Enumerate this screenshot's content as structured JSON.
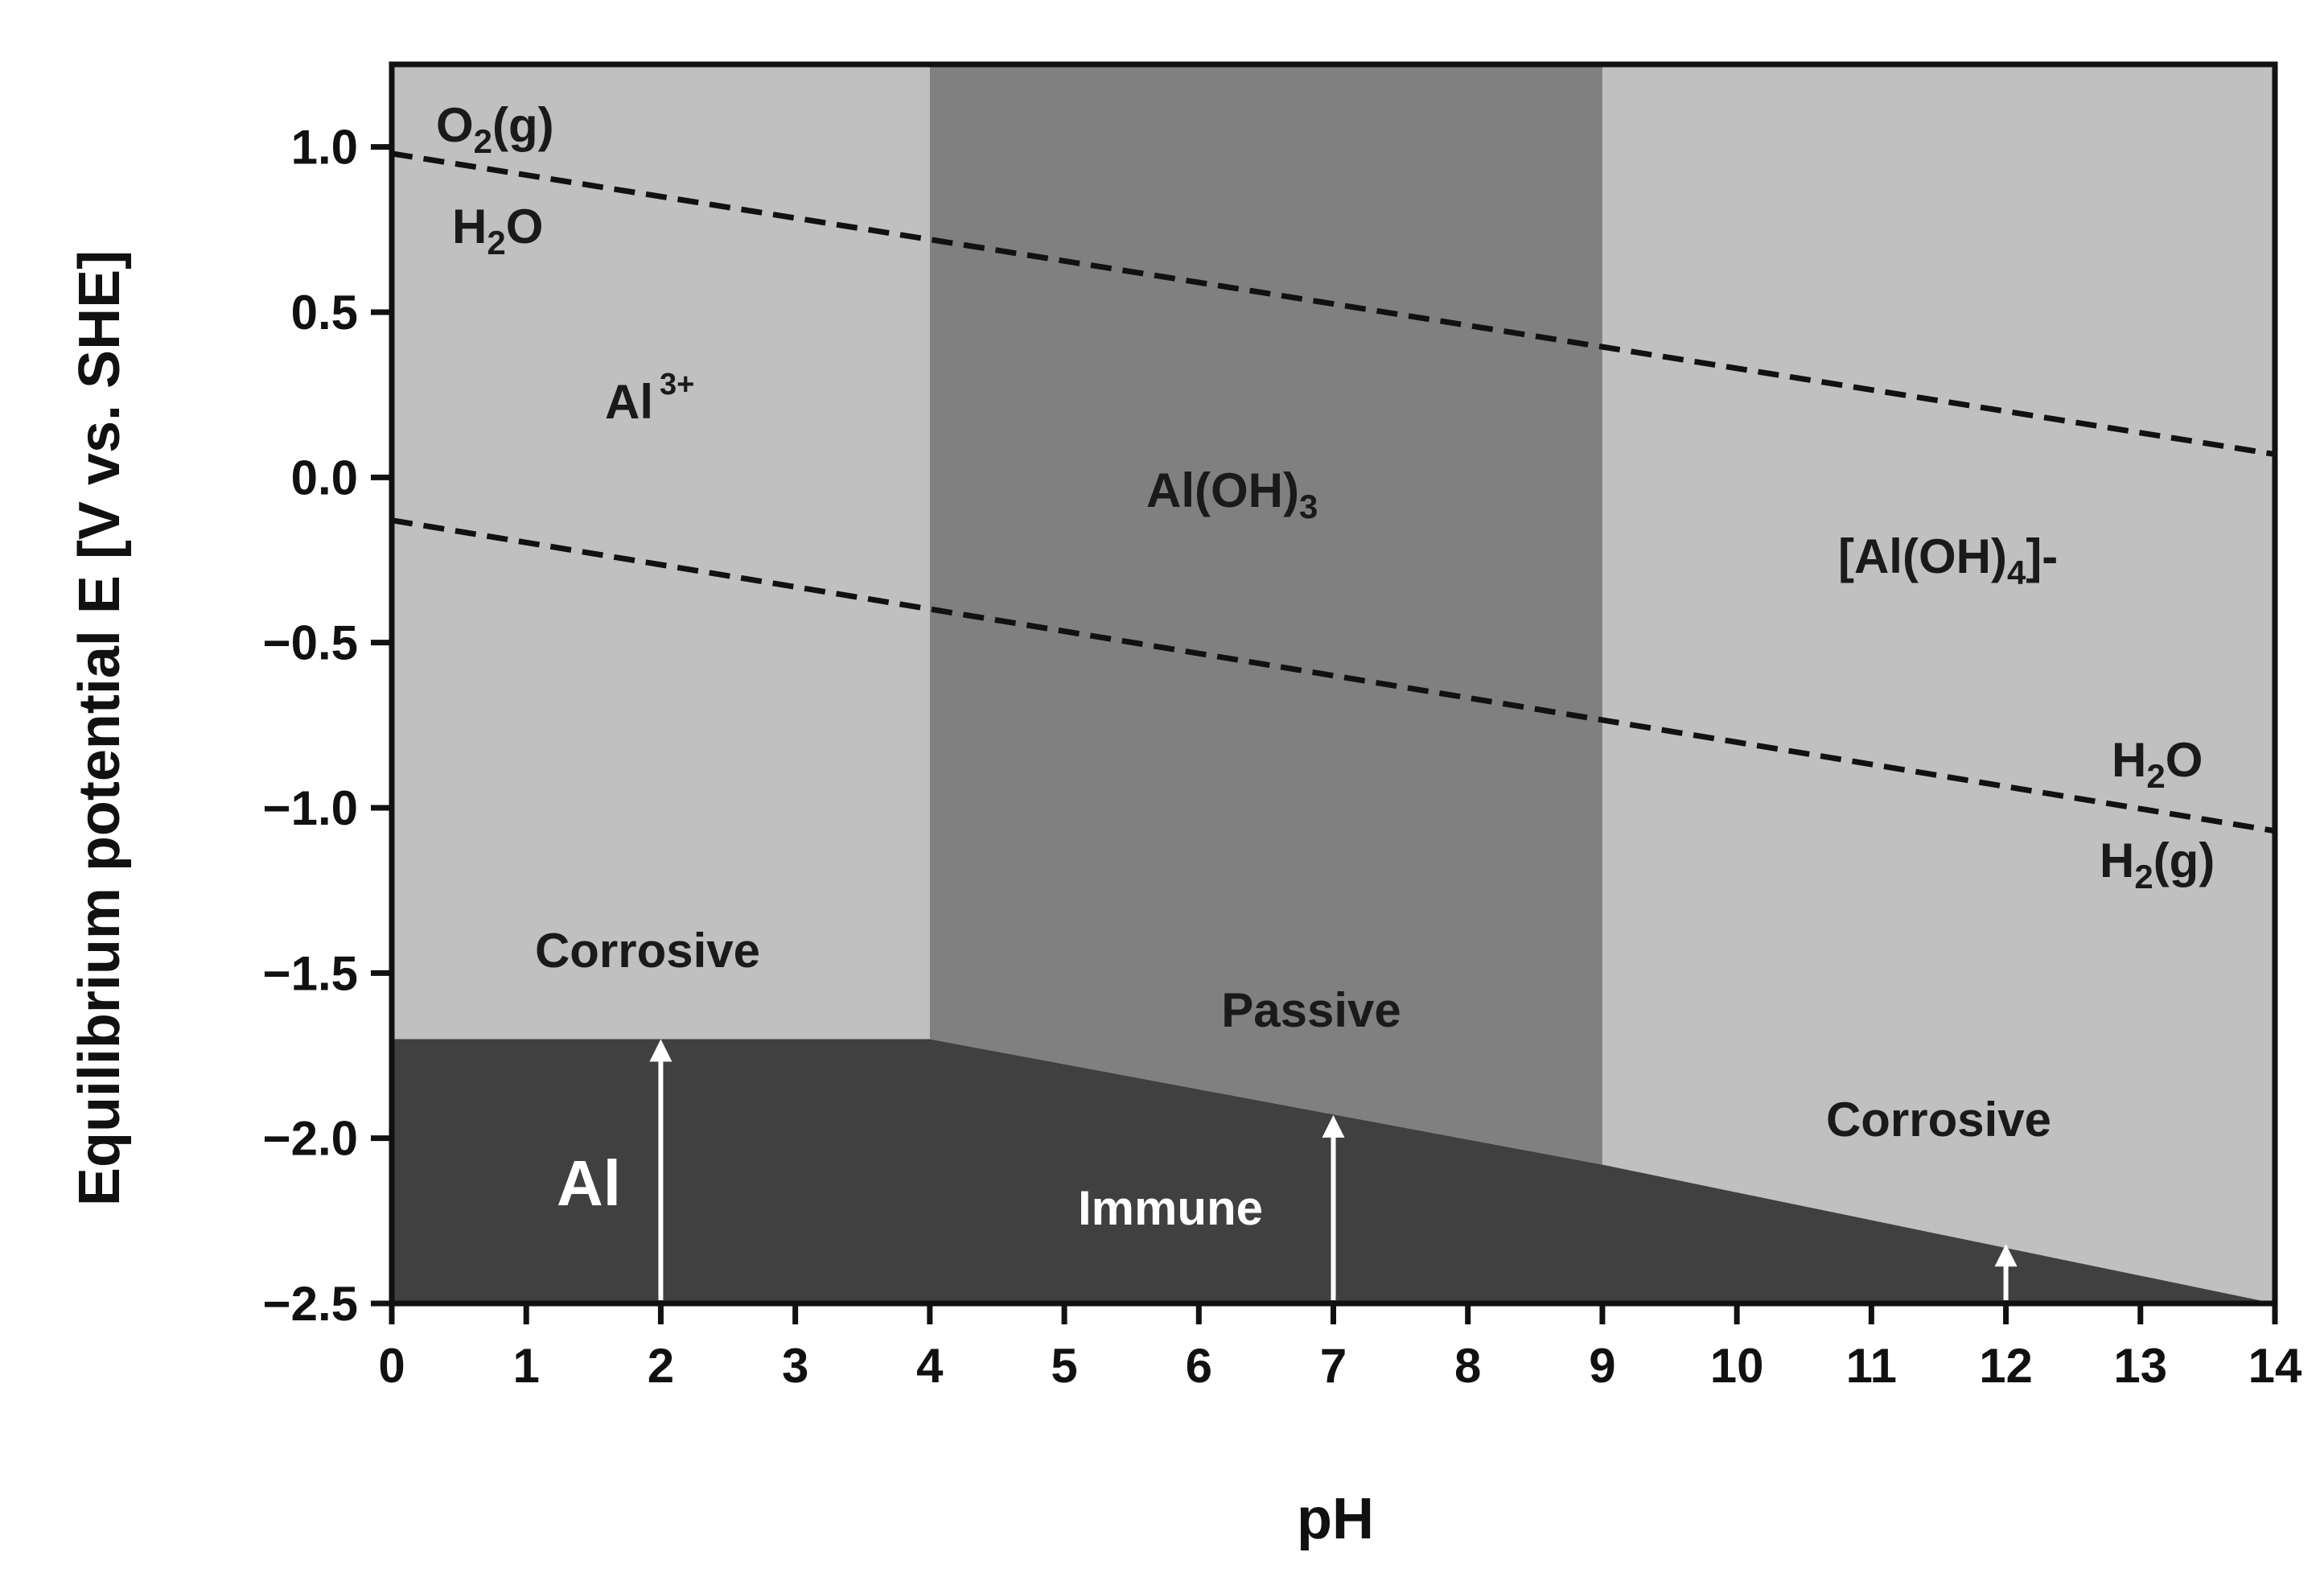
{
  "chart_data": {
    "type": "area",
    "title": "",
    "xlabel": "pH",
    "ylabel": "Equilibrium potential E [V vs. SHE]",
    "xlim": [
      0,
      14
    ],
    "ylim": [
      -2.5,
      1.25
    ],
    "x_ticks": [
      0,
      1,
      2,
      3,
      4,
      5,
      6,
      7,
      8,
      9,
      10,
      11,
      12,
      13,
      14
    ],
    "x_tick_labels": [
      "0",
      "1",
      "2",
      "3",
      "4",
      "5",
      "6",
      "7",
      "8",
      "9",
      "10",
      "11",
      "12",
      "13",
      "14"
    ],
    "y_ticks": [
      1.0,
      0.5,
      0.0,
      -0.5,
      -1.0,
      -1.5,
      -2.0,
      -2.5
    ],
    "y_tick_labels": [
      "1.0",
      "0.5",
      "0.0",
      "−0.5",
      "−1.0",
      "−1.5",
      "−2.0",
      "−2.5"
    ],
    "regions": [
      {
        "name": "al3-corrosive",
        "color": "#c0c0c0",
        "polygon": [
          [
            0,
            1.25
          ],
          [
            4,
            1.25
          ],
          [
            4,
            -1.7
          ],
          [
            0,
            -1.7
          ]
        ]
      },
      {
        "name": "aloh3-passive",
        "color": "#808080",
        "polygon": [
          [
            4,
            1.25
          ],
          [
            9,
            1.25
          ],
          [
            9,
            -2.08
          ],
          [
            4,
            -1.7
          ]
        ]
      },
      {
        "name": "aloh4-corrosive",
        "color": "#c0c0c0",
        "polygon": [
          [
            9,
            1.25
          ],
          [
            14,
            1.25
          ],
          [
            14,
            -2.5
          ],
          [
            9,
            -2.08
          ]
        ]
      },
      {
        "name": "al-immune",
        "color": "#404040",
        "polygon": [
          [
            0,
            -1.7
          ],
          [
            4,
            -1.7
          ],
          [
            9,
            -2.08
          ],
          [
            14,
            -2.5
          ],
          [
            0,
            -2.5
          ]
        ]
      }
    ],
    "water_lines": [
      {
        "name": "O2/H2O",
        "points": [
          [
            0,
            0.98
          ],
          [
            14,
            0.07
          ]
        ],
        "style": "dashed"
      },
      {
        "name": "H2O/H2",
        "points": [
          [
            0,
            -0.13
          ],
          [
            14,
            -1.07
          ]
        ],
        "style": "dashed"
      }
    ],
    "arrows": [
      {
        "x": 2,
        "from": -2.5,
        "to": -1.7
      },
      {
        "x": 7,
        "from": -2.5,
        "to": -1.93
      },
      {
        "x": 12,
        "from": -2.5,
        "to": -2.32
      }
    ],
    "labels": {
      "o2": {
        "main": "O",
        "sub": "2",
        "tail": "(g)"
      },
      "h2o_top": {
        "main": "H",
        "sub": "2",
        "tail": "O"
      },
      "al3": {
        "main": "Al",
        "sup": "3+"
      },
      "aloh3": {
        "main": "Al(OH)",
        "sub": "3"
      },
      "aloh4": {
        "main": "[Al(OH)",
        "sub": "4",
        "tail": "]-"
      },
      "h2o_bottom": {
        "main": "H",
        "sub": "2",
        "tail": "O"
      },
      "h2": {
        "main": "H",
        "sub": "2",
        "tail": "(g)"
      },
      "corrosive_left": "Corrosive",
      "passive": "Passive",
      "corrosive_right": "Corrosive",
      "al": "Al",
      "immune": "Immune"
    },
    "grid": false,
    "legend": "none"
  }
}
